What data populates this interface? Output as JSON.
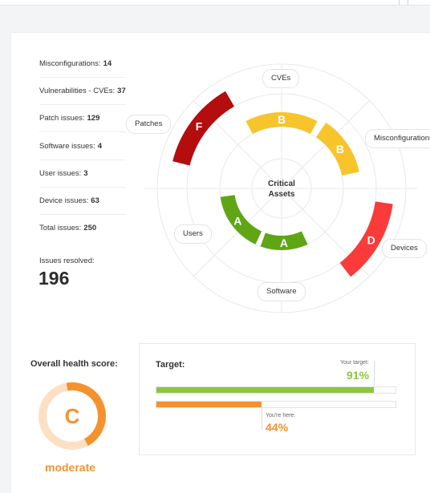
{
  "stats": [
    {
      "label": "Misconfigurations:",
      "value": "14"
    },
    {
      "label": "Vulnerabilities - CVEs:",
      "value": "37"
    },
    {
      "label": "Patch issues:",
      "value": "129"
    },
    {
      "label": "Software issues:",
      "value": "4"
    },
    {
      "label": "User issues:",
      "value": "3"
    },
    {
      "label": "Device issues:",
      "value": "63"
    },
    {
      "label": "Total issues:",
      "value": "250"
    }
  ],
  "resolved": {
    "label": "Issues resolved:",
    "value": "196"
  },
  "radar": {
    "center_label_line1": "Critical",
    "center_label_line2": "Assets",
    "categories": {
      "cves": "CVEs",
      "misconfigurations": "Misconfigurations",
      "devices": "Devices",
      "software": "Software",
      "users": "Users",
      "patches": "Patches"
    },
    "segments": [
      {
        "category": "CVEs",
        "grade": "B",
        "color": "#f7c52b"
      },
      {
        "category": "Misconfigurations",
        "grade": "B",
        "color": "#f7c52b"
      },
      {
        "category": "Devices",
        "grade": "D",
        "color": "#fb3a3a"
      },
      {
        "category": "Software",
        "grade": "A",
        "color": "#5fa615"
      },
      {
        "category": "Users",
        "grade": "A",
        "color": "#5fa615"
      },
      {
        "category": "Patches",
        "grade": "F",
        "color": "#b30d0d"
      }
    ]
  },
  "health": {
    "title": "Overall health score:",
    "grade": "C",
    "status": "moderate",
    "accent": "#f5922f",
    "ring_fill": 0.45
  },
  "target": {
    "title": "Target:",
    "your_target_label": "Your target:",
    "your_target_value": "91%",
    "your_target_fraction": 0.91,
    "target_color": "#8cc63f",
    "current_label": "You're here:",
    "current_value": "44%",
    "current_fraction": 0.44,
    "current_color": "#f5922f"
  }
}
